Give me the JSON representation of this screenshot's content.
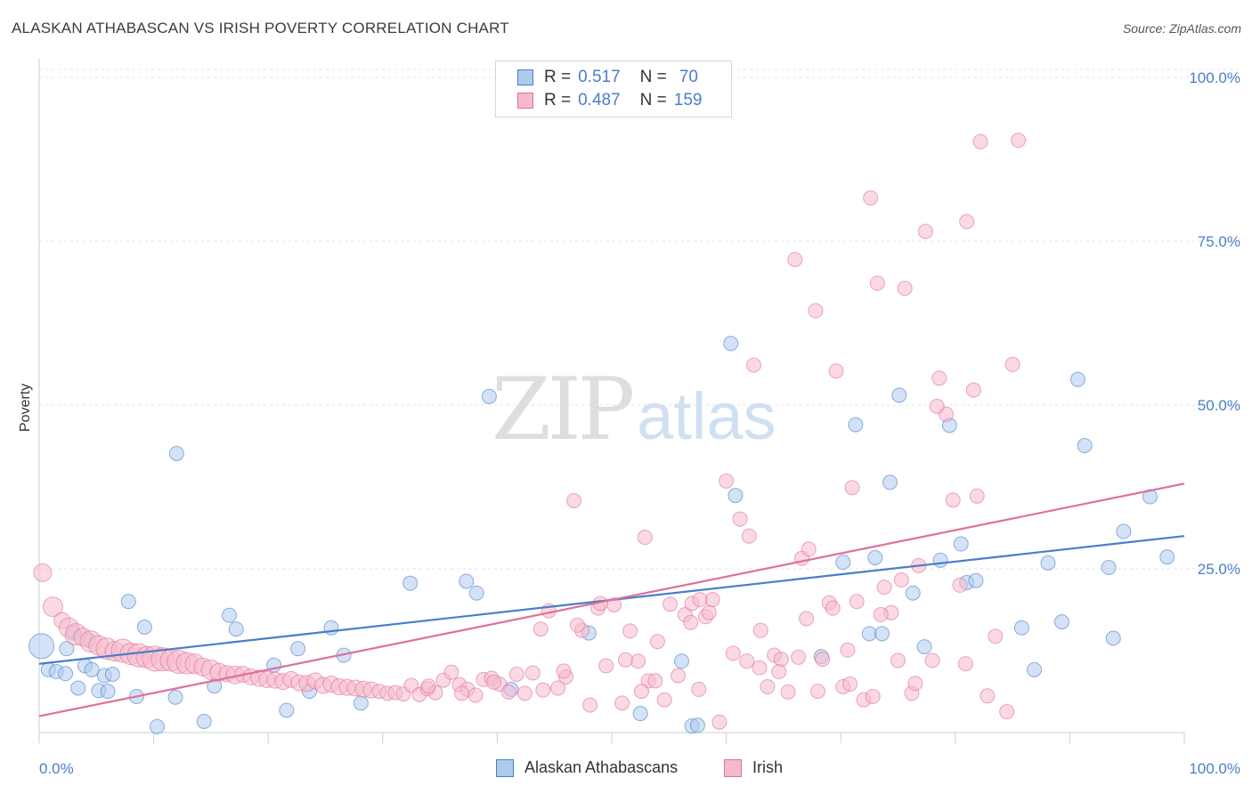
{
  "title": "ALASKAN ATHABASCAN VS IRISH POVERTY CORRELATION CHART",
  "source": "Source: ZipAtlas.com",
  "watermark": {
    "zip": "ZIP",
    "atlas": "atlas"
  },
  "chart_data": {
    "type": "scatter",
    "title": "ALASKAN ATHABASCAN VS IRISH POVERTY CORRELATION CHART",
    "xlabel": "",
    "ylabel": "Poverty",
    "xlim": [
      0,
      100
    ],
    "ylim": [
      0,
      100
    ],
    "x_tick_labels": [
      "0.0%",
      "100.0%"
    ],
    "y_ticks": [
      25,
      50,
      75,
      100
    ],
    "y_tick_labels": [
      "25.0%",
      "50.0%",
      "75.0%",
      "100.0%"
    ],
    "grid": true,
    "legend_placement": "top-center",
    "series": [
      {
        "name": "Alaskan Athabascans",
        "color": "#4a7ec9",
        "fill": "#aecbee",
        "r_label": "R =",
        "r_value": "0.517",
        "n_label": "N =",
        "n_value": "70",
        "trend": {
          "x": [
            0,
            100
          ],
          "y": [
            10.5,
            30.0
          ]
        },
        "points": [
          [
            0.2,
            13.2,
            14
          ],
          [
            0.8,
            9.6,
            8
          ],
          [
            1.5,
            9.3,
            8
          ],
          [
            2.3,
            9.0,
            8
          ],
          [
            2.4,
            12.8,
            8
          ],
          [
            3.0,
            15.2,
            8
          ],
          [
            3.4,
            6.8,
            8
          ],
          [
            4.0,
            10.2,
            8
          ],
          [
            4.3,
            14.1,
            8
          ],
          [
            4.6,
            9.6,
            8
          ],
          [
            5.2,
            6.4,
            8
          ],
          [
            5.7,
            8.7,
            8
          ],
          [
            6.0,
            6.3,
            8
          ],
          [
            6.4,
            8.9,
            8
          ],
          [
            7.8,
            20.0,
            8
          ],
          [
            8.5,
            5.5,
            8
          ],
          [
            9.2,
            16.1,
            8
          ],
          [
            10.3,
            0.9,
            8
          ],
          [
            11.9,
            5.4,
            8
          ],
          [
            12.0,
            42.6,
            8
          ],
          [
            14.4,
            1.7,
            8
          ],
          [
            15.3,
            7.1,
            8
          ],
          [
            16.6,
            17.9,
            8
          ],
          [
            17.2,
            15.8,
            8
          ],
          [
            20.5,
            10.3,
            8
          ],
          [
            21.6,
            3.4,
            8
          ],
          [
            22.6,
            12.8,
            8
          ],
          [
            23.6,
            6.3,
            8
          ],
          [
            25.5,
            16.0,
            8
          ],
          [
            26.6,
            11.8,
            8
          ],
          [
            28.1,
            4.5,
            8
          ],
          [
            32.4,
            22.8,
            8
          ],
          [
            37.3,
            23.1,
            8
          ],
          [
            38.2,
            21.3,
            8
          ],
          [
            39.3,
            51.3,
            8
          ],
          [
            41.2,
            6.6,
            8
          ],
          [
            48.0,
            15.2,
            8
          ],
          [
            52.5,
            2.9,
            8
          ],
          [
            56.1,
            10.9,
            8
          ],
          [
            57.0,
            1.0,
            8
          ],
          [
            57.5,
            1.1,
            8
          ],
          [
            60.4,
            59.4,
            8
          ],
          [
            60.8,
            36.2,
            8
          ],
          [
            68.3,
            11.6,
            8
          ],
          [
            70.2,
            26.0,
            8
          ],
          [
            71.3,
            47.0,
            8
          ],
          [
            72.5,
            15.1,
            8
          ],
          [
            73.0,
            26.7,
            8
          ],
          [
            73.6,
            15.1,
            8
          ],
          [
            74.3,
            38.2,
            8
          ],
          [
            75.1,
            51.5,
            8
          ],
          [
            76.3,
            21.3,
            8
          ],
          [
            77.3,
            13.1,
            8
          ],
          [
            78.7,
            26.3,
            8
          ],
          [
            79.5,
            46.9,
            8
          ],
          [
            80.5,
            28.8,
            8
          ],
          [
            81.0,
            22.9,
            8
          ],
          [
            81.8,
            23.2,
            8
          ],
          [
            85.8,
            16.0,
            8
          ],
          [
            86.9,
            9.6,
            8
          ],
          [
            88.1,
            25.9,
            8
          ],
          [
            89.3,
            16.9,
            8
          ],
          [
            90.7,
            53.9,
            8
          ],
          [
            91.3,
            43.8,
            8
          ],
          [
            93.4,
            25.2,
            8
          ],
          [
            93.8,
            14.4,
            8
          ],
          [
            94.7,
            30.7,
            8
          ],
          [
            97.0,
            36.0,
            8
          ],
          [
            98.5,
            26.8,
            8
          ],
          [
            96.0,
            31.5,
            0
          ]
        ]
      },
      {
        "name": "Irish",
        "color": "#e07098",
        "fill": "#f6b9cc",
        "r_label": "R =",
        "r_value": "0.487",
        "n_label": "N =",
        "n_value": "159",
        "trend": {
          "x": [
            0,
            100
          ],
          "y": [
            2.5,
            38.0
          ]
        },
        "points": [
          [
            0.3,
            24.4,
            10
          ],
          [
            1.2,
            19.2,
            11
          ],
          [
            2.0,
            17.1,
            9
          ],
          [
            2.6,
            16.0,
            11
          ],
          [
            3.2,
            15.0,
            12
          ],
          [
            3.8,
            14.6,
            10
          ],
          [
            4.5,
            13.9,
            12
          ],
          [
            5.2,
            13.3,
            11
          ],
          [
            5.9,
            12.8,
            12
          ],
          [
            6.6,
            12.4,
            11
          ],
          [
            7.3,
            12.5,
            13
          ],
          [
            8.0,
            12.0,
            12
          ],
          [
            8.7,
            11.8,
            13
          ],
          [
            9.4,
            11.5,
            12
          ],
          [
            10.1,
            11.3,
            14
          ],
          [
            10.8,
            11.2,
            13
          ],
          [
            11.5,
            11.0,
            12
          ],
          [
            12.2,
            10.8,
            13
          ],
          [
            12.9,
            10.6,
            12
          ],
          [
            13.6,
            10.5,
            11
          ],
          [
            14.3,
            10.0,
            10
          ],
          [
            15.0,
            9.6,
            11
          ],
          [
            15.7,
            9.2,
            10
          ],
          [
            16.4,
            9.0,
            9
          ],
          [
            17.1,
            8.8,
            10
          ],
          [
            17.8,
            8.9,
            9
          ],
          [
            18.5,
            8.5,
            9
          ],
          [
            19.2,
            8.3,
            9
          ],
          [
            19.9,
            8.1,
            9
          ],
          [
            20.6,
            8.0,
            9
          ],
          [
            21.3,
            7.8,
            9
          ],
          [
            22.0,
            8.1,
            9
          ],
          [
            22.7,
            7.6,
            9
          ],
          [
            23.4,
            7.5,
            9
          ],
          [
            24.1,
            7.9,
            9
          ],
          [
            24.8,
            7.2,
            9
          ],
          [
            25.5,
            7.4,
            9
          ],
          [
            26.2,
            7.0,
            9
          ],
          [
            26.9,
            6.9,
            9
          ],
          [
            27.6,
            6.8,
            9
          ],
          [
            28.3,
            6.6,
            9
          ],
          [
            29.0,
            6.5,
            9
          ],
          [
            29.7,
            6.3,
            8
          ],
          [
            30.4,
            6.0,
            8
          ],
          [
            31.1,
            6.1,
            8
          ],
          [
            31.8,
            5.9,
            8
          ],
          [
            32.5,
            7.2,
            8
          ],
          [
            33.2,
            5.8,
            8
          ],
          [
            33.9,
            6.7,
            8
          ],
          [
            34.6,
            6.1,
            8
          ],
          [
            35.3,
            8.0,
            8
          ],
          [
            36.0,
            9.2,
            8
          ],
          [
            36.7,
            7.3,
            8
          ],
          [
            37.4,
            6.6,
            8
          ],
          [
            38.1,
            5.7,
            8
          ],
          [
            38.8,
            8.1,
            8
          ],
          [
            39.5,
            8.3,
            8
          ],
          [
            40.2,
            7.4,
            8
          ],
          [
            41.0,
            6.2,
            8
          ],
          [
            41.7,
            8.9,
            8
          ],
          [
            42.4,
            6.0,
            8
          ],
          [
            43.1,
            9.1,
            8
          ],
          [
            43.8,
            15.8,
            8
          ],
          [
            44.5,
            18.6,
            8
          ],
          [
            45.3,
            6.8,
            8
          ],
          [
            46.0,
            8.5,
            8
          ],
          [
            46.7,
            35.4,
            8
          ],
          [
            47.4,
            15.6,
            8
          ],
          [
            48.1,
            4.2,
            8
          ],
          [
            48.8,
            19.0,
            8
          ],
          [
            49.5,
            10.2,
            8
          ],
          [
            50.2,
            19.5,
            8
          ],
          [
            50.9,
            4.5,
            8
          ],
          [
            51.6,
            15.5,
            8
          ],
          [
            52.3,
            10.9,
            8
          ],
          [
            52.9,
            29.8,
            8
          ],
          [
            53.2,
            7.9,
            8
          ],
          [
            54.0,
            13.9,
            8
          ],
          [
            54.6,
            5.0,
            8
          ],
          [
            55.1,
            19.6,
            8
          ],
          [
            55.8,
            8.7,
            8
          ],
          [
            56.4,
            18.0,
            8
          ],
          [
            57.0,
            19.7,
            8
          ],
          [
            57.6,
            6.6,
            8
          ],
          [
            58.2,
            17.7,
            8
          ],
          [
            58.8,
            20.3,
            8
          ],
          [
            59.4,
            1.6,
            8
          ],
          [
            60.0,
            38.4,
            8
          ],
          [
            60.6,
            12.1,
            8
          ],
          [
            61.2,
            32.6,
            8
          ],
          [
            61.8,
            10.9,
            8
          ],
          [
            62.4,
            56.1,
            8
          ],
          [
            63.0,
            15.6,
            8
          ],
          [
            63.6,
            7.0,
            8
          ],
          [
            64.2,
            11.8,
            8
          ],
          [
            64.8,
            11.2,
            8
          ],
          [
            65.4,
            6.2,
            8
          ],
          [
            66.0,
            72.2,
            8
          ],
          [
            66.6,
            26.6,
            8
          ],
          [
            67.2,
            28.0,
            8
          ],
          [
            67.8,
            64.4,
            8
          ],
          [
            68.4,
            11.2,
            8
          ],
          [
            69.0,
            19.8,
            8
          ],
          [
            69.6,
            55.2,
            8
          ],
          [
            70.2,
            7.0,
            8
          ],
          [
            70.8,
            7.4,
            8
          ],
          [
            71.4,
            20.0,
            8
          ],
          [
            72.0,
            5.0,
            8
          ],
          [
            72.6,
            81.6,
            8
          ],
          [
            73.2,
            68.6,
            8
          ],
          [
            73.8,
            22.2,
            8
          ],
          [
            74.4,
            18.3,
            8
          ],
          [
            75.0,
            11.0,
            8
          ],
          [
            75.6,
            67.8,
            8
          ],
          [
            76.2,
            6.0,
            8
          ],
          [
            76.8,
            25.5,
            8
          ],
          [
            77.4,
            76.5,
            8
          ],
          [
            78.0,
            11.0,
            8
          ],
          [
            78.6,
            54.1,
            8
          ],
          [
            79.2,
            48.6,
            8
          ],
          [
            79.8,
            35.5,
            8
          ],
          [
            80.4,
            22.5,
            8
          ],
          [
            81.0,
            78.0,
            8
          ],
          [
            81.6,
            52.3,
            8
          ],
          [
            82.2,
            90.2,
            8
          ],
          [
            82.8,
            5.6,
            8
          ],
          [
            83.5,
            14.7,
            8
          ],
          [
            84.5,
            3.2,
            8
          ],
          [
            85.5,
            90.4,
            8
          ],
          [
            34.0,
            7.1,
            8
          ],
          [
            36.9,
            6.0,
            8
          ],
          [
            39.7,
            7.7,
            8
          ],
          [
            44.0,
            6.5,
            8
          ],
          [
            45.8,
            9.4,
            8
          ],
          [
            47.0,
            16.4,
            8
          ],
          [
            49.0,
            19.7,
            8
          ],
          [
            51.2,
            11.1,
            8
          ],
          [
            52.6,
            6.3,
            8
          ],
          [
            53.8,
            7.9,
            8
          ],
          [
            56.9,
            16.8,
            8
          ],
          [
            57.7,
            20.3,
            8
          ],
          [
            58.5,
            18.3,
            8
          ],
          [
            62.0,
            30.0,
            8
          ],
          [
            62.9,
            9.9,
            8
          ],
          [
            64.6,
            9.3,
            8
          ],
          [
            66.3,
            11.5,
            8
          ],
          [
            67.0,
            17.4,
            8
          ],
          [
            68.0,
            6.3,
            8
          ],
          [
            69.3,
            19.0,
            8
          ],
          [
            70.6,
            12.6,
            8
          ],
          [
            71.0,
            37.4,
            8
          ],
          [
            72.8,
            5.5,
            8
          ],
          [
            73.5,
            18.0,
            8
          ],
          [
            75.3,
            23.3,
            8
          ],
          [
            76.5,
            7.5,
            8
          ],
          [
            78.4,
            49.8,
            8
          ],
          [
            80.9,
            10.5,
            8
          ],
          [
            81.9,
            36.1,
            8
          ],
          [
            85.0,
            56.2,
            8
          ]
        ]
      }
    ]
  }
}
